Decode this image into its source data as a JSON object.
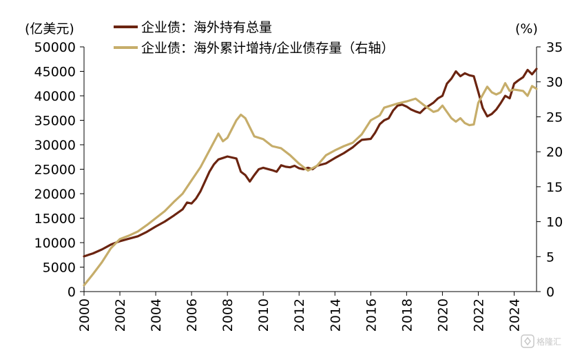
{
  "chart_data": {
    "type": "line",
    "left_unit": "(亿美元)",
    "right_unit": "(%)",
    "left_axis": {
      "min": 0,
      "max": 50000,
      "ticks": [
        0,
        5000,
        10000,
        15000,
        20000,
        25000,
        30000,
        35000,
        40000,
        45000,
        50000
      ]
    },
    "right_axis": {
      "min": 0,
      "max": 35,
      "ticks": [
        0,
        5,
        10,
        15,
        20,
        25,
        30,
        35
      ]
    },
    "x_axis": {
      "min": 2000,
      "max": 2025.25,
      "ticks": [
        "2000",
        "2002",
        "2004",
        "2006",
        "2008",
        "2010",
        "2012",
        "2014",
        "2016",
        "2018",
        "2020",
        "2022",
        "2024"
      ]
    },
    "grid": false,
    "legend_position": "top",
    "series": [
      {
        "name": "企业债：海外持有总量",
        "axis": "left",
        "color": "#6b2410",
        "points": [
          [
            2000.0,
            7200
          ],
          [
            2000.5,
            7800
          ],
          [
            2001.0,
            8600
          ],
          [
            2001.5,
            9600
          ],
          [
            2002.0,
            10300
          ],
          [
            2002.5,
            10800
          ],
          [
            2003.0,
            11300
          ],
          [
            2003.5,
            12200
          ],
          [
            2004.0,
            13300
          ],
          [
            2004.5,
            14300
          ],
          [
            2005.0,
            15500
          ],
          [
            2005.5,
            16800
          ],
          [
            2005.75,
            18200
          ],
          [
            2006.0,
            18000
          ],
          [
            2006.25,
            19000
          ],
          [
            2006.5,
            20500
          ],
          [
            2006.75,
            22500
          ],
          [
            2007.0,
            24500
          ],
          [
            2007.25,
            26000
          ],
          [
            2007.5,
            27000
          ],
          [
            2007.75,
            27300
          ],
          [
            2008.0,
            27600
          ],
          [
            2008.5,
            27200
          ],
          [
            2008.75,
            24500
          ],
          [
            2009.0,
            23800
          ],
          [
            2009.25,
            22500
          ],
          [
            2009.5,
            23800
          ],
          [
            2009.75,
            25000
          ],
          [
            2010.0,
            25300
          ],
          [
            2010.5,
            24800
          ],
          [
            2010.75,
            24500
          ],
          [
            2011.0,
            25800
          ],
          [
            2011.25,
            25500
          ],
          [
            2011.5,
            25400
          ],
          [
            2011.75,
            25700
          ],
          [
            2012.0,
            25200
          ],
          [
            2012.25,
            25000
          ],
          [
            2012.5,
            25300
          ],
          [
            2012.75,
            25000
          ],
          [
            2013.0,
            25700
          ],
          [
            2013.5,
            26200
          ],
          [
            2014.0,
            27300
          ],
          [
            2014.5,
            28300
          ],
          [
            2015.0,
            29500
          ],
          [
            2015.25,
            30300
          ],
          [
            2015.5,
            31000
          ],
          [
            2016.0,
            31200
          ],
          [
            2016.25,
            32500
          ],
          [
            2016.5,
            34200
          ],
          [
            2016.75,
            35000
          ],
          [
            2017.0,
            35400
          ],
          [
            2017.25,
            37000
          ],
          [
            2017.5,
            38000
          ],
          [
            2017.75,
            38200
          ],
          [
            2018.0,
            37800
          ],
          [
            2018.25,
            37200
          ],
          [
            2018.5,
            36800
          ],
          [
            2018.75,
            36500
          ],
          [
            2019.0,
            37400
          ],
          [
            2019.5,
            38600
          ],
          [
            2019.75,
            39500
          ],
          [
            2020.0,
            40000
          ],
          [
            2020.25,
            42500
          ],
          [
            2020.5,
            43500
          ],
          [
            2020.75,
            45000
          ],
          [
            2021.0,
            44000
          ],
          [
            2021.25,
            44600
          ],
          [
            2021.5,
            44200
          ],
          [
            2021.75,
            44000
          ],
          [
            2022.0,
            40800
          ],
          [
            2022.25,
            37500
          ],
          [
            2022.5,
            35800
          ],
          [
            2022.75,
            36300
          ],
          [
            2023.0,
            37200
          ],
          [
            2023.25,
            38500
          ],
          [
            2023.5,
            40000
          ],
          [
            2023.75,
            39500
          ],
          [
            2024.0,
            42500
          ],
          [
            2024.25,
            43200
          ],
          [
            2024.5,
            43800
          ],
          [
            2024.75,
            45300
          ],
          [
            2025.0,
            44400
          ],
          [
            2025.25,
            45500
          ]
        ]
      },
      {
        "name": "企业债：海外累计增持/企业债存量（右轴）",
        "axis": "right",
        "color": "#c6ad6a",
        "points": [
          [
            2000.0,
            0.9
          ],
          [
            2000.5,
            2.5
          ],
          [
            2001.0,
            4.2
          ],
          [
            2001.5,
            6.2
          ],
          [
            2002.0,
            7.5
          ],
          [
            2002.5,
            8.0
          ],
          [
            2003.0,
            8.6
          ],
          [
            2003.5,
            9.5
          ],
          [
            2004.0,
            10.5
          ],
          [
            2004.5,
            11.5
          ],
          [
            2005.0,
            12.8
          ],
          [
            2005.5,
            14.0
          ],
          [
            2006.0,
            15.9
          ],
          [
            2006.5,
            17.8
          ],
          [
            2007.0,
            20.2
          ],
          [
            2007.5,
            22.6
          ],
          [
            2007.75,
            21.5
          ],
          [
            2008.0,
            22.0
          ],
          [
            2008.5,
            24.5
          ],
          [
            2008.75,
            25.3
          ],
          [
            2009.0,
            24.8
          ],
          [
            2009.5,
            22.2
          ],
          [
            2010.0,
            21.8
          ],
          [
            2010.5,
            20.8
          ],
          [
            2011.0,
            20.5
          ],
          [
            2011.5,
            19.5
          ],
          [
            2012.0,
            18.3
          ],
          [
            2012.5,
            17.3
          ],
          [
            2013.0,
            18.0
          ],
          [
            2013.5,
            19.5
          ],
          [
            2014.0,
            20.2
          ],
          [
            2014.5,
            20.8
          ],
          [
            2015.0,
            21.3
          ],
          [
            2015.5,
            22.5
          ],
          [
            2016.0,
            24.5
          ],
          [
            2016.5,
            25.2
          ],
          [
            2016.75,
            26.3
          ],
          [
            2017.0,
            26.5
          ],
          [
            2017.5,
            26.9
          ],
          [
            2018.0,
            27.2
          ],
          [
            2018.5,
            27.6
          ],
          [
            2019.0,
            26.6
          ],
          [
            2019.5,
            25.7
          ],
          [
            2019.75,
            25.9
          ],
          [
            2020.0,
            26.6
          ],
          [
            2020.5,
            24.8
          ],
          [
            2020.75,
            24.3
          ],
          [
            2021.0,
            24.8
          ],
          [
            2021.25,
            24.1
          ],
          [
            2021.5,
            23.8
          ],
          [
            2021.75,
            23.9
          ],
          [
            2022.0,
            27.0
          ],
          [
            2022.5,
            29.3
          ],
          [
            2022.75,
            28.5
          ],
          [
            2023.0,
            28.2
          ],
          [
            2023.25,
            28.5
          ],
          [
            2023.5,
            29.8
          ],
          [
            2023.75,
            28.7
          ],
          [
            2024.0,
            28.9
          ],
          [
            2024.5,
            28.7
          ],
          [
            2024.75,
            28.0
          ],
          [
            2025.0,
            29.4
          ],
          [
            2025.25,
            29.0
          ]
        ]
      }
    ]
  },
  "watermark": {
    "text": "格隆汇",
    "icon": "geelonghui-logo-icon"
  }
}
